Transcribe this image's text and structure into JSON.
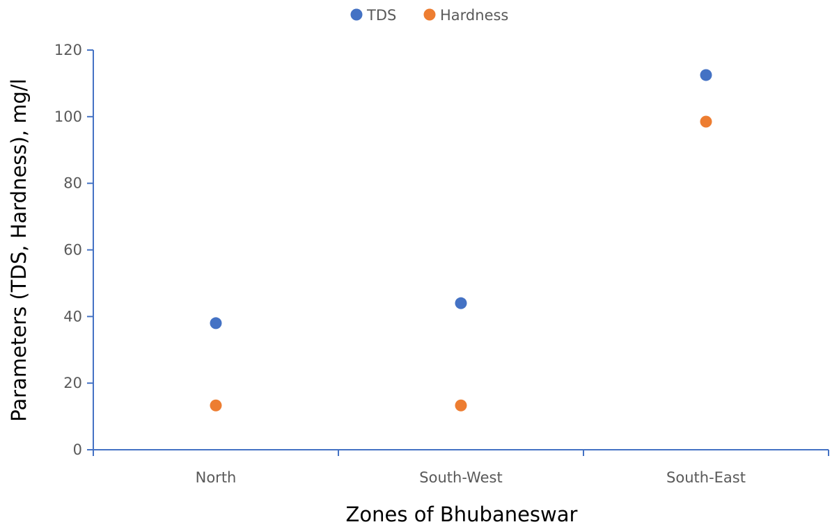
{
  "chart_data": {
    "type": "scatter",
    "title": "",
    "xlabel": "Zones of Bhubaneswar",
    "ylabel": "Parameters (TDS, Hardness),  mg/l",
    "categories": [
      "North",
      "South-West",
      "South-East"
    ],
    "ylim": [
      0,
      120
    ],
    "yticks": [
      "0",
      "20",
      "40",
      "60",
      "80",
      "100",
      "120"
    ],
    "grid": false,
    "legend_position": "top-center",
    "series": [
      {
        "name": "TDS",
        "color": "#4472C4",
        "values": [
          38,
          44,
          112.5
        ]
      },
      {
        "name": "Hardness",
        "color": "#ED7D31",
        "values": [
          13.3,
          13.3,
          98.5
        ]
      }
    ],
    "axis_color": "#4472C4"
  }
}
